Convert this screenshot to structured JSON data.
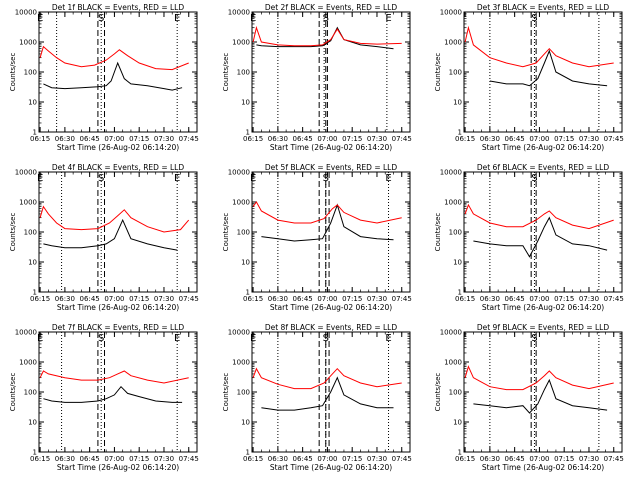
{
  "figure": {
    "ylabel": "Counts/sec",
    "xlabel": "Start Time (26-Aug-02 06:14:20)",
    "legend_template": "Det {n}f BLACK = Events, RED = LLD",
    "colors": {
      "events": "#000000",
      "lld": "#ff0000",
      "axes": "#000000"
    }
  },
  "chart_data": [
    {
      "type": "line",
      "title": "Det 1f BLACK = Events, RED = LLD",
      "xlabel": "Start Time (26-Aug-02 06:14:20)",
      "ylabel": "Counts/sec",
      "scale": "log",
      "ylim": [
        1,
        10000
      ],
      "x_ticks": [
        "06:15",
        "06:30",
        "06:45",
        "07:00",
        "07:15",
        "07:30",
        "07:45"
      ],
      "y_ticks": [
        "1",
        "10",
        "100",
        "1000",
        "10000"
      ],
      "markers": [
        {
          "label": "E",
          "time": "06:15"
        },
        {
          "label": "S",
          "time": "06:52"
        },
        {
          "label": "E",
          "time": "07:38"
        }
      ],
      "dotted_lines": [
        "06:25",
        "06:52",
        "07:38"
      ],
      "dashed_lines": [
        "06:50",
        "06:54"
      ],
      "series": [
        {
          "name": "BLACK = Events",
          "x": [
            "06:17",
            "06:22",
            "06:30",
            "06:40",
            "06:50",
            "06:55",
            "06:58",
            "07:02",
            "07:06",
            "07:10",
            "07:20",
            "07:30",
            "07:35",
            "07:41"
          ],
          "y": [
            40,
            30,
            28,
            30,
            32,
            35,
            50,
            200,
            60,
            40,
            35,
            28,
            25,
            30
          ]
        },
        {
          "name": "RED = LLD",
          "x": [
            "06:15",
            "06:17",
            "06:20",
            "06:25",
            "06:30",
            "06:40",
            "06:48",
            "06:55",
            "07:00",
            "07:03",
            "07:08",
            "07:15",
            "07:25",
            "07:35",
            "07:45"
          ],
          "y": [
            300,
            700,
            500,
            300,
            200,
            150,
            170,
            250,
            400,
            550,
            350,
            200,
            130,
            120,
            200
          ]
        }
      ]
    },
    {
      "type": "line",
      "title": "Det 2f BLACK = Events, RED = LLD",
      "xlabel": "Start Time (26-Aug-02 06:14:20)",
      "ylabel": "Counts/sec",
      "scale": "log",
      "ylim": [
        1,
        10000
      ],
      "x_ticks": [
        "06:15",
        "06:30",
        "06:45",
        "07:00",
        "07:15",
        "07:30",
        "07:45"
      ],
      "y_ticks": [
        "1",
        "10",
        "100",
        "1000",
        "10000"
      ],
      "markers": [
        {
          "label": "E",
          "time": "06:15"
        },
        {
          "label": "S",
          "time": "06:59"
        },
        {
          "label": "E",
          "time": "07:37"
        }
      ],
      "dotted_lines": [
        "06:30",
        "06:58",
        "07:36"
      ],
      "dashed_lines": [
        "06:55",
        "06:59",
        "07:00"
      ],
      "series": [
        {
          "name": "BLACK = Events",
          "x": [
            "06:17",
            "06:20",
            "06:30",
            "06:40",
            "06:50",
            "06:57",
            "07:02",
            "07:06",
            "07:10",
            "07:20",
            "07:30",
            "07:40"
          ],
          "y": [
            800,
            750,
            700,
            700,
            700,
            750,
            1100,
            3000,
            1200,
            800,
            700,
            600
          ]
        },
        {
          "name": "RED = LLD",
          "x": [
            "06:15",
            "06:17",
            "06:20",
            "06:30",
            "06:40",
            "06:50",
            "06:57",
            "07:02",
            "07:06",
            "07:10",
            "07:20",
            "07:30",
            "07:45"
          ],
          "y": [
            1000,
            3000,
            1000,
            800,
            750,
            750,
            800,
            1200,
            2700,
            1200,
            900,
            850,
            900
          ]
        }
      ]
    },
    {
      "type": "line",
      "title": "Det 3f BLACK = Events, RED = LLD",
      "xlabel": "Start Time (26-Aug-02 06:14:20)",
      "ylabel": "Counts/sec",
      "scale": "log",
      "ylim": [
        1,
        10000
      ],
      "x_ticks": [
        "06:15",
        "06:30",
        "06:45",
        "07:00",
        "07:15",
        "07:30",
        "07:45"
      ],
      "y_ticks": [
        "1",
        "10",
        "100",
        "1000",
        "10000"
      ],
      "markers": [
        {
          "label": "S",
          "time": "06:57"
        }
      ],
      "dotted_lines": [
        "06:30",
        "06:57",
        "07:36"
      ],
      "dashed_lines": [
        "06:55",
        "06:58"
      ],
      "series": [
        {
          "name": "BLACK = Events",
          "x": [
            "06:30",
            "06:40",
            "06:50",
            "06:54",
            "06:59",
            "07:03",
            "07:06",
            "07:10",
            "07:20",
            "07:30",
            "07:41"
          ],
          "y": [
            50,
            40,
            40,
            35,
            60,
            200,
            500,
            100,
            50,
            40,
            35
          ]
        },
        {
          "name": "RED = LLD",
          "x": [
            "06:15",
            "06:17",
            "06:20",
            "06:30",
            "06:40",
            "06:50",
            "06:58",
            "07:03",
            "07:06",
            "07:10",
            "07:20",
            "07:30",
            "07:45"
          ],
          "y": [
            1000,
            3000,
            800,
            300,
            200,
            150,
            200,
            400,
            600,
            350,
            200,
            150,
            200
          ]
        }
      ]
    },
    {
      "type": "line",
      "title": "Det 4f BLACK = Events, RED = LLD",
      "xlabel": "Start Time (26-Aug-02 06:14:20)",
      "ylabel": "Counts/sec",
      "scale": "log",
      "ylim": [
        1,
        10000
      ],
      "x_ticks": [
        "06:15",
        "06:30",
        "06:45",
        "07:00",
        "07:15",
        "07:30",
        "07:45"
      ],
      "y_ticks": [
        "1",
        "10",
        "100",
        "1000",
        "10000"
      ],
      "markers": [
        {
          "label": "E",
          "time": "06:15"
        },
        {
          "label": "S",
          "time": "06:52"
        },
        {
          "label": "E",
          "time": "07:38"
        }
      ],
      "dotted_lines": [
        "06:28",
        "06:52",
        "07:38"
      ],
      "dashed_lines": [
        "06:50",
        "06:54"
      ],
      "series": [
        {
          "name": "BLACK = Events",
          "x": [
            "06:17",
            "06:22",
            "06:30",
            "06:40",
            "06:50",
            "06:55",
            "07:00",
            "07:05",
            "07:10",
            "07:20",
            "07:30",
            "07:38"
          ],
          "y": [
            40,
            35,
            30,
            30,
            35,
            40,
            60,
            250,
            60,
            40,
            30,
            25
          ]
        },
        {
          "name": "RED = LLD",
          "x": [
            "06:15",
            "06:17",
            "06:20",
            "06:25",
            "06:30",
            "06:40",
            "06:50",
            "06:57",
            "07:02",
            "07:06",
            "07:10",
            "07:20",
            "07:30",
            "07:40",
            "07:45"
          ],
          "y": [
            300,
            700,
            400,
            200,
            130,
            120,
            130,
            200,
            350,
            550,
            300,
            150,
            100,
            120,
            250
          ]
        }
      ]
    },
    {
      "type": "line",
      "title": "Det 5f BLACK = Events, RED = LLD",
      "xlabel": "Start Time (26-Aug-02 06:14:20)",
      "ylabel": "Counts/sec",
      "scale": "log",
      "ylim": [
        1,
        10000
      ],
      "x_ticks": [
        "06:15",
        "06:30",
        "06:45",
        "07:00",
        "07:15",
        "07:30",
        "07:45"
      ],
      "y_ticks": [
        "1",
        "10",
        "100",
        "1000",
        "10000"
      ],
      "markers": [
        {
          "label": "E",
          "time": "06:15"
        },
        {
          "label": "S",
          "time": "06:59"
        },
        {
          "label": "E",
          "time": "07:37"
        }
      ],
      "dotted_lines": [
        "06:30",
        "06:59",
        "07:37"
      ],
      "dashed_lines": [
        "06:55",
        "06:59",
        "07:01"
      ],
      "series": [
        {
          "name": "BLACK = Events",
          "x": [
            "06:20",
            "06:30",
            "06:40",
            "06:50",
            "06:57",
            "07:02",
            "07:06",
            "07:10",
            "07:20",
            "07:30",
            "07:40"
          ],
          "y": [
            70,
            60,
            50,
            55,
            60,
            200,
            800,
            150,
            70,
            60,
            55
          ]
        },
        {
          "name": "RED = LLD",
          "x": [
            "06:15",
            "06:17",
            "06:20",
            "06:30",
            "06:40",
            "06:50",
            "06:58",
            "07:03",
            "07:06",
            "07:10",
            "07:20",
            "07:30",
            "07:45"
          ],
          "y": [
            700,
            1000,
            500,
            250,
            200,
            200,
            280,
            600,
            800,
            450,
            250,
            200,
            300
          ]
        }
      ]
    },
    {
      "type": "line",
      "title": "Det 6f BLACK = Events, RED = LLD",
      "xlabel": "Start Time (26-Aug-02 06:14:20)",
      "ylabel": "Counts/sec",
      "scale": "log",
      "ylim": [
        1,
        10000
      ],
      "x_ticks": [
        "06:15",
        "06:30",
        "06:45",
        "07:00",
        "07:15",
        "07:30",
        "07:45"
      ],
      "y_ticks": [
        "1",
        "10",
        "100",
        "1000",
        "10000"
      ],
      "markers": [
        {
          "label": "S",
          "time": "06:57"
        }
      ],
      "dotted_lines": [
        "06:30",
        "06:57",
        "07:36"
      ],
      "dashed_lines": [
        "06:55",
        "06:58"
      ],
      "series": [
        {
          "name": "BLACK = Events",
          "x": [
            "06:20",
            "06:30",
            "06:40",
            "06:50",
            "06:54",
            "06:59",
            "07:03",
            "07:06",
            "07:10",
            "07:20",
            "07:30",
            "07:41"
          ],
          "y": [
            50,
            40,
            35,
            35,
            15,
            50,
            150,
            300,
            80,
            40,
            35,
            25
          ]
        },
        {
          "name": "RED = LLD",
          "x": [
            "06:15",
            "06:17",
            "06:20",
            "06:30",
            "06:40",
            "06:50",
            "06:58",
            "07:03",
            "07:06",
            "07:10",
            "07:20",
            "07:30",
            "07:45"
          ],
          "y": [
            400,
            800,
            400,
            200,
            150,
            150,
            250,
            400,
            500,
            300,
            170,
            130,
            250
          ]
        }
      ]
    },
    {
      "type": "line",
      "title": "Det 7f BLACK = Events, RED = LLD",
      "xlabel": "Start Time (26-Aug-02 06:14:20)",
      "ylabel": "Counts/sec",
      "scale": "log",
      "ylim": [
        1,
        10000
      ],
      "x_ticks": [
        "06:15",
        "06:30",
        "06:45",
        "07:00",
        "07:15",
        "07:30",
        "07:45"
      ],
      "y_ticks": [
        "1",
        "10",
        "100",
        "1000",
        "10000"
      ],
      "markers": [
        {
          "label": "E",
          "time": "06:15"
        },
        {
          "label": "S",
          "time": "06:52"
        },
        {
          "label": "E",
          "time": "07:38"
        }
      ],
      "dotted_lines": [
        "06:28",
        "06:52",
        "07:38"
      ],
      "dashed_lines": [
        "06:50",
        "06:54"
      ],
      "series": [
        {
          "name": "BLACK = Events",
          "x": [
            "06:17",
            "06:22",
            "06:30",
            "06:40",
            "06:50",
            "06:55",
            "07:00",
            "07:04",
            "07:08",
            "07:15",
            "07:25",
            "07:35",
            "07:41"
          ],
          "y": [
            60,
            50,
            45,
            45,
            50,
            60,
            80,
            150,
            90,
            70,
            50,
            45,
            45
          ]
        },
        {
          "name": "RED = LLD",
          "x": [
            "06:15",
            "06:17",
            "06:20",
            "06:30",
            "06:40",
            "06:50",
            "06:57",
            "07:02",
            "07:06",
            "07:10",
            "07:20",
            "07:30",
            "07:45"
          ],
          "y": [
            300,
            500,
            400,
            300,
            250,
            250,
            300,
            400,
            500,
            350,
            250,
            200,
            300
          ]
        }
      ]
    },
    {
      "type": "line",
      "title": "Det 8f BLACK = Events, RED = LLD",
      "xlabel": "Start Time (26-Aug-02 06:14:20)",
      "ylabel": "Counts/sec",
      "scale": "log",
      "ylim": [
        1,
        10000
      ],
      "x_ticks": [
        "06:15",
        "06:30",
        "06:45",
        "07:00",
        "07:15",
        "07:30",
        "07:45"
      ],
      "y_ticks": [
        "1",
        "10",
        "100",
        "1000",
        "10000"
      ],
      "markers": [
        {
          "label": "E",
          "time": "06:15"
        },
        {
          "label": "S",
          "time": "06:59"
        },
        {
          "label": "E",
          "time": "07:37"
        }
      ],
      "dotted_lines": [
        "06:30",
        "06:59",
        "07:37"
      ],
      "dashed_lines": [
        "06:55",
        "06:59",
        "07:01"
      ],
      "series": [
        {
          "name": "BLACK = Events",
          "x": [
            "06:20",
            "06:30",
            "06:40",
            "06:50",
            "06:57",
            "07:02",
            "07:06",
            "07:10",
            "07:20",
            "07:30",
            "07:40"
          ],
          "y": [
            30,
            25,
            25,
            30,
            35,
            100,
            300,
            80,
            40,
            30,
            30
          ]
        },
        {
          "name": "RED = LLD",
          "x": [
            "06:15",
            "06:17",
            "06:20",
            "06:30",
            "06:40",
            "06:50",
            "06:58",
            "07:03",
            "07:06",
            "07:10",
            "07:20",
            "07:30",
            "07:45"
          ],
          "y": [
            300,
            600,
            300,
            180,
            130,
            130,
            200,
            400,
            600,
            350,
            200,
            150,
            200
          ]
        }
      ]
    },
    {
      "type": "line",
      "title": "Det 9f BLACK = Events, RED = LLD",
      "xlabel": "Start Time (26-Aug-02 06:14:20)",
      "ylabel": "Counts/sec",
      "scale": "log",
      "ylim": [
        1,
        10000
      ],
      "x_ticks": [
        "06:15",
        "06:30",
        "06:45",
        "07:00",
        "07:15",
        "07:30",
        "07:45"
      ],
      "y_ticks": [
        "1",
        "10",
        "100",
        "1000",
        "10000"
      ],
      "markers": [
        {
          "label": "S",
          "time": "06:57"
        }
      ],
      "dotted_lines": [
        "06:30",
        "06:57",
        "07:36"
      ],
      "dashed_lines": [
        "06:55",
        "06:58"
      ],
      "series": [
        {
          "name": "BLACK = Events",
          "x": [
            "06:20",
            "06:30",
            "06:40",
            "06:50",
            "06:54",
            "06:59",
            "07:03",
            "07:06",
            "07:10",
            "07:20",
            "07:30",
            "07:41"
          ],
          "y": [
            40,
            35,
            30,
            35,
            20,
            40,
            120,
            250,
            60,
            35,
            30,
            25
          ]
        },
        {
          "name": "RED = LLD",
          "x": [
            "06:15",
            "06:17",
            "06:20",
            "06:30",
            "06:40",
            "06:50",
            "06:58",
            "07:03",
            "07:06",
            "07:10",
            "07:20",
            "07:30",
            "07:45"
          ],
          "y": [
            300,
            700,
            300,
            150,
            120,
            120,
            200,
            350,
            500,
            300,
            170,
            130,
            200
          ]
        }
      ]
    }
  ]
}
